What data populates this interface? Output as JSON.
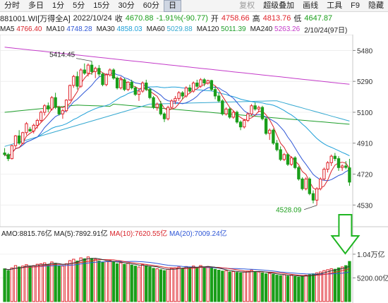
{
  "toolbar": {
    "periods": [
      "分时",
      "多日",
      "1分",
      "5分",
      "15分",
      "30分",
      "60分",
      "日"
    ],
    "active": "日",
    "right": [
      {
        "label": "复权",
        "disabled": true
      },
      {
        "label": "超级叠加",
        "disabled": false
      },
      {
        "label": "画线",
        "disabled": false
      },
      {
        "label": "工具",
        "disabled": false
      },
      {
        "label": "F9",
        "disabled": false
      },
      {
        "label": "隐藏",
        "disabled": false
      }
    ]
  },
  "info": {
    "code": "881001.WI[万得全A]",
    "date": "2022/10/24",
    "close_label": "收",
    "close": "4670.88",
    "change": "-1.91%(-90.77)",
    "open_label": "开",
    "open": "4758.66",
    "high_label": "高",
    "high": "4813.76",
    "low_label": "低",
    "low": "4647.87"
  },
  "ma_line": [
    {
      "label": "MA5",
      "value": "4766.40",
      "color": "#d9232a"
    },
    {
      "label": "MA10",
      "value": "4748.28",
      "color": "#2f57d6"
    },
    {
      "label": "MA30",
      "value": "4858.03",
      "color": "#1d9fd8"
    },
    {
      "label": "MA60",
      "value": "5029.88",
      "color": "#34a8d0"
    },
    {
      "label": "MA120",
      "value": "5011.39",
      "color": "#1e9e2b"
    },
    {
      "label": "MA240",
      "value": "5263.26",
      "color": "#c43bc9"
    },
    {
      "label": "",
      "value": "2/10/24(97日)",
      "color": "#222222"
    }
  ],
  "amo_line": {
    "amo_label": "AMO:",
    "amo": "8815.76亿",
    "ma5_label": "MA(5):",
    "ma5": "7892.91亿",
    "ma10_label": "MA(10):",
    "ma10": "7620.55亿",
    "ma20_label": "MA(20):",
    "ma20": "7009.24亿"
  },
  "axis": {
    "price_ticks": [
      "5480",
      "5290",
      "5100",
      "4910",
      "4720",
      "4530"
    ],
    "volume_ticks": [
      "1.04万亿",
      "5200.00亿"
    ]
  },
  "annotations": {
    "high_label": "5414.45",
    "low_label": "4528.09"
  },
  "colors": {
    "up": "#e0242b",
    "down": "#1a9e1a",
    "ma5": "#d9232a",
    "ma10": "#2f57d6",
    "ma30": "#1d9fd8",
    "ma60": "#34a8d0",
    "ma120": "#1e9e2b",
    "ma240": "#c43bc9",
    "arrow": "#1fb522"
  },
  "icons": {
    "arrow": "down-arrow-icon"
  },
  "chart_data": {
    "type": "candlestick",
    "price_ylim": [
      4440,
      5560
    ],
    "volume_ylim": [
      0,
      12400
    ],
    "price_ticks": [
      5480,
      5290,
      5100,
      4910,
      4720,
      4530
    ],
    "volume_ticks": [
      10400,
      5200
    ],
    "candles": [
      [
        4850,
        4880,
        4830,
        4840,
        7200
      ],
      [
        4840,
        4850,
        4800,
        4815,
        6800
      ],
      [
        4815,
        4900,
        4810,
        4895,
        7400
      ],
      [
        4895,
        4960,
        4880,
        4955,
        7900
      ],
      [
        4955,
        4990,
        4900,
        4910,
        7600
      ],
      [
        4910,
        4980,
        4905,
        4975,
        7800
      ],
      [
        4975,
        5040,
        4960,
        5030,
        8100
      ],
      [
        4995,
        5010,
        4980,
        4985,
        7700
      ],
      [
        4985,
        5030,
        4970,
        5020,
        7900
      ],
      [
        5020,
        5060,
        5000,
        5050,
        8200
      ],
      [
        5050,
        5110,
        5040,
        5100,
        8300
      ],
      [
        5100,
        5150,
        5080,
        5140,
        8500
      ],
      [
        5140,
        5160,
        5100,
        5120,
        8100
      ],
      [
        5120,
        5200,
        5110,
        5190,
        8700
      ],
      [
        5190,
        5220,
        5120,
        5130,
        8400
      ],
      [
        5130,
        5140,
        5080,
        5090,
        7900
      ],
      [
        5090,
        5120,
        5060,
        5110,
        7800
      ],
      [
        5110,
        5180,
        5100,
        5175,
        8300
      ],
      [
        5175,
        5270,
        5170,
        5265,
        9000
      ],
      [
        5265,
        5330,
        5250,
        5320,
        9300
      ],
      [
        5320,
        5350,
        5240,
        5260,
        8900
      ],
      [
        5260,
        5370,
        5250,
        5360,
        9600
      ],
      [
        5360,
        5400,
        5330,
        5340,
        9400
      ],
      [
        5340,
        5400,
        5320,
        5390,
        9800
      ],
      [
        5390,
        5414,
        5330,
        5350,
        9500
      ],
      [
        5350,
        5380,
        5310,
        5370,
        9300
      ],
      [
        5370,
        5390,
        5320,
        5335,
        8900
      ],
      [
        5335,
        5345,
        5260,
        5270,
        8600
      ],
      [
        5270,
        5340,
        5260,
        5330,
        8800
      ],
      [
        5330,
        5370,
        5320,
        5360,
        9000
      ],
      [
        5360,
        5370,
        5300,
        5310,
        8700
      ],
      [
        5310,
        5320,
        5240,
        5250,
        8300
      ],
      [
        5250,
        5320,
        5240,
        5300,
        8500
      ],
      [
        5300,
        5310,
        5230,
        5240,
        8200
      ],
      [
        5240,
        5290,
        5230,
        5285,
        8400
      ],
      [
        5285,
        5300,
        5240,
        5250,
        8000
      ],
      [
        5250,
        5260,
        5200,
        5210,
        7800
      ],
      [
        5210,
        5240,
        5170,
        5230,
        7600
      ],
      [
        5230,
        5290,
        5220,
        5280,
        8100
      ],
      [
        5280,
        5300,
        5230,
        5240,
        7900
      ],
      [
        5240,
        5250,
        5180,
        5190,
        7600
      ],
      [
        5190,
        5200,
        5120,
        5130,
        7300
      ],
      [
        5130,
        5160,
        5110,
        5150,
        7200
      ],
      [
        5150,
        5170,
        5080,
        5090,
        7000
      ],
      [
        5090,
        5100,
        5040,
        5060,
        6800
      ],
      [
        5060,
        5140,
        5050,
        5130,
        7100
      ],
      [
        5130,
        5180,
        5120,
        5170,
        7300
      ],
      [
        5170,
        5200,
        5150,
        5185,
        7400
      ],
      [
        5185,
        5230,
        5170,
        5220,
        7600
      ],
      [
        5220,
        5230,
        5180,
        5200,
        7300
      ],
      [
        5200,
        5260,
        5190,
        5250,
        7700
      ],
      [
        5250,
        5270,
        5220,
        5230,
        7400
      ],
      [
        5230,
        5290,
        5220,
        5280,
        7800
      ],
      [
        5280,
        5300,
        5250,
        5260,
        7500
      ],
      [
        5260,
        5310,
        5250,
        5300,
        7900
      ],
      [
        5300,
        5310,
        5260,
        5280,
        7600
      ],
      [
        5280,
        5300,
        5270,
        5295,
        7700
      ],
      [
        5295,
        5300,
        5230,
        5240,
        7400
      ],
      [
        5240,
        5260,
        5180,
        5200,
        7100
      ],
      [
        5200,
        5220,
        5160,
        5170,
        6900
      ],
      [
        5170,
        5180,
        5080,
        5090,
        6700
      ],
      [
        5090,
        5130,
        5080,
        5120,
        6800
      ],
      [
        5120,
        5130,
        5060,
        5070,
        6500
      ],
      [
        5070,
        5110,
        5060,
        5100,
        6600
      ],
      [
        5100,
        5110,
        5030,
        5040,
        6400
      ],
      [
        5040,
        5050,
        4990,
        5010,
        6300
      ],
      [
        5010,
        5060,
        5000,
        5050,
        6500
      ],
      [
        5050,
        5100,
        5040,
        5090,
        6700
      ],
      [
        5090,
        5150,
        5080,
        5140,
        6900
      ],
      [
        5140,
        5160,
        5110,
        5120,
        6600
      ],
      [
        5120,
        5140,
        5100,
        5130,
        6500
      ],
      [
        5130,
        5140,
        5050,
        5060,
        6300
      ],
      [
        5060,
        5070,
        4960,
        4970,
        6100
      ],
      [
        4970,
        5000,
        4930,
        4990,
        6200
      ],
      [
        4990,
        5000,
        4900,
        4910,
        6000
      ],
      [
        4910,
        4930,
        4860,
        4870,
        5800
      ],
      [
        4870,
        4890,
        4800,
        4810,
        5700
      ],
      [
        4810,
        4850,
        4800,
        4840,
        5900
      ],
      [
        4840,
        4850,
        4770,
        4780,
        5600
      ],
      [
        4780,
        4830,
        4770,
        4820,
        5800
      ],
      [
        4820,
        4830,
        4750,
        4760,
        5500
      ],
      [
        4760,
        4770,
        4680,
        4690,
        5400
      ],
      [
        4690,
        4700,
        4620,
        4630,
        5600
      ],
      [
        4630,
        4700,
        4620,
        4690,
        5800
      ],
      [
        4690,
        4700,
        4590,
        4600,
        5900
      ],
      [
        4600,
        4620,
        4540,
        4560,
        6100
      ],
      [
        4560,
        4640,
        4528,
        4630,
        6300
      ],
      [
        4630,
        4700,
        4620,
        4690,
        6500
      ],
      [
        4690,
        4760,
        4680,
        4750,
        6800
      ],
      [
        4750,
        4800,
        4730,
        4790,
        7000
      ],
      [
        4790,
        4840,
        4770,
        4830,
        7200
      ],
      [
        4830,
        4850,
        4800,
        4815,
        7100
      ],
      [
        4815,
        4830,
        4740,
        4760,
        7400
      ],
      [
        4760,
        4780,
        4740,
        4770,
        7600
      ],
      [
        4770,
        4800,
        4750,
        4761,
        7900
      ],
      [
        4758.66,
        4813.76,
        4647.87,
        4670.88,
        8815.76
      ]
    ]
  }
}
